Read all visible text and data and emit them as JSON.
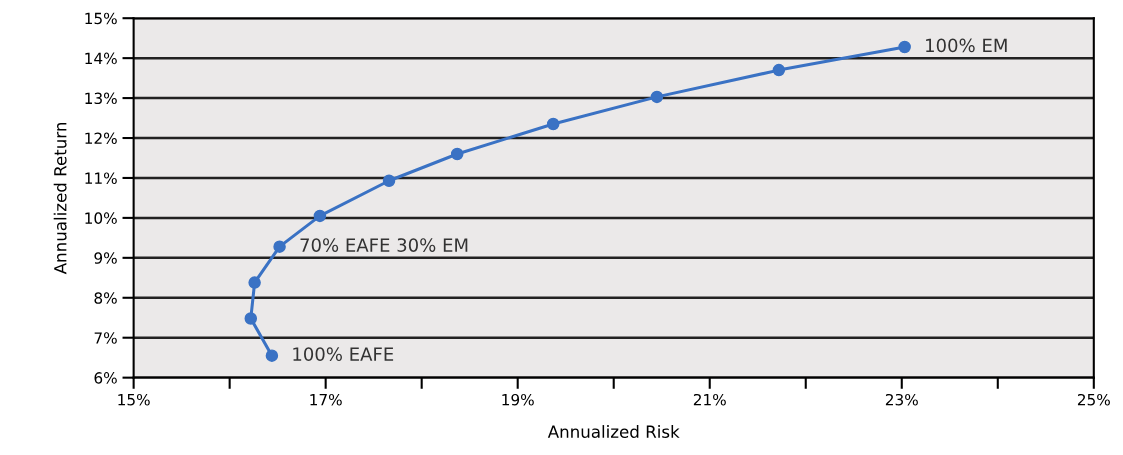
{
  "chart_data": {
    "type": "line",
    "xlabel": "Annualized Risk",
    "ylabel": "Annualized Return",
    "x": [
      16.44,
      16.22,
      16.26,
      16.52,
      16.94,
      17.66,
      18.37,
      19.37,
      20.45,
      21.72,
      23.03
    ],
    "series": [
      {
        "color": "#3a72c4",
        "values": [
          6.55,
          7.48,
          8.38,
          9.28,
          10.05,
          10.93,
          11.6,
          12.35,
          13.03,
          13.7,
          14.28
        ]
      }
    ],
    "marker": "circle",
    "line_style": "solid",
    "grid": "y",
    "legend": false,
    "xlim": [
      15,
      25
    ],
    "ylim": [
      6,
      15
    ],
    "xticks": [
      {
        "value": 15,
        "label": "15%"
      },
      {
        "value": 16,
        "label": null
      },
      {
        "value": 17,
        "label": "17%"
      },
      {
        "value": 18,
        "label": null
      },
      {
        "value": 19,
        "label": "19%"
      },
      {
        "value": 20,
        "label": null
      },
      {
        "value": 21,
        "label": "21%"
      },
      {
        "value": 22,
        "label": null
      },
      {
        "value": 23,
        "label": "23%"
      },
      {
        "value": 24,
        "label": null
      },
      {
        "value": 25,
        "label": "25%"
      }
    ],
    "yticks": [
      {
        "value": 6,
        "label": "6%"
      },
      {
        "value": 7,
        "label": "7%"
      },
      {
        "value": 8,
        "label": "8%"
      },
      {
        "value": 9,
        "label": "9%"
      },
      {
        "value": 10,
        "label": "10%"
      },
      {
        "value": 11,
        "label": "11%"
      },
      {
        "value": 12,
        "label": "12%"
      },
      {
        "value": 13,
        "label": "13%"
      },
      {
        "value": 14,
        "label": "14%"
      },
      {
        "value": 15,
        "label": "15%"
      }
    ],
    "annotations": [
      {
        "text": "100% EAFE",
        "x": 16.44,
        "y": 6.55
      },
      {
        "text": "70% EAFE 30% EM",
        "x": 16.52,
        "y": 9.28
      },
      {
        "text": "100% EM",
        "x": 23.03,
        "y": 14.28
      }
    ]
  }
}
